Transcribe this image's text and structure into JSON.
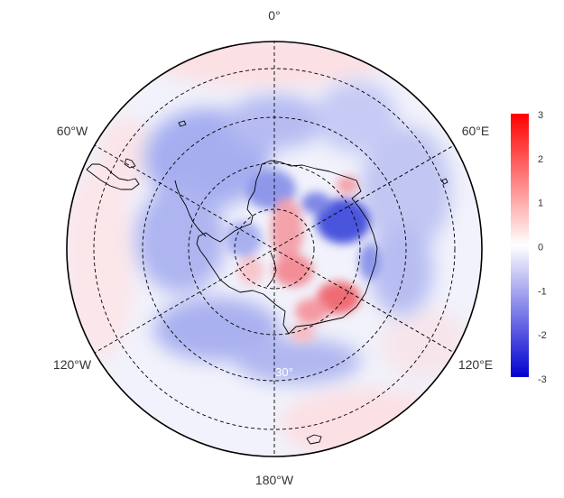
{
  "map": {
    "projection": "south-polar-stereographic",
    "longitude_labels": {
      "top": "0°",
      "upper_left": "60°W",
      "upper_right": "60°E",
      "lower_left": "120°W",
      "lower_right": "120°E",
      "bottom": "180°W"
    },
    "latitude_label": "30°",
    "colors": {
      "low": "#0000d0",
      "mid": "#ffffff",
      "high": "#ff0000",
      "coastline": "#000000",
      "gridline": "#000000"
    }
  },
  "colorbar": {
    "ticks": [
      "3",
      "2",
      "1",
      "0",
      "-1",
      "-2",
      "-3"
    ],
    "min": -3,
    "max": 3
  }
}
